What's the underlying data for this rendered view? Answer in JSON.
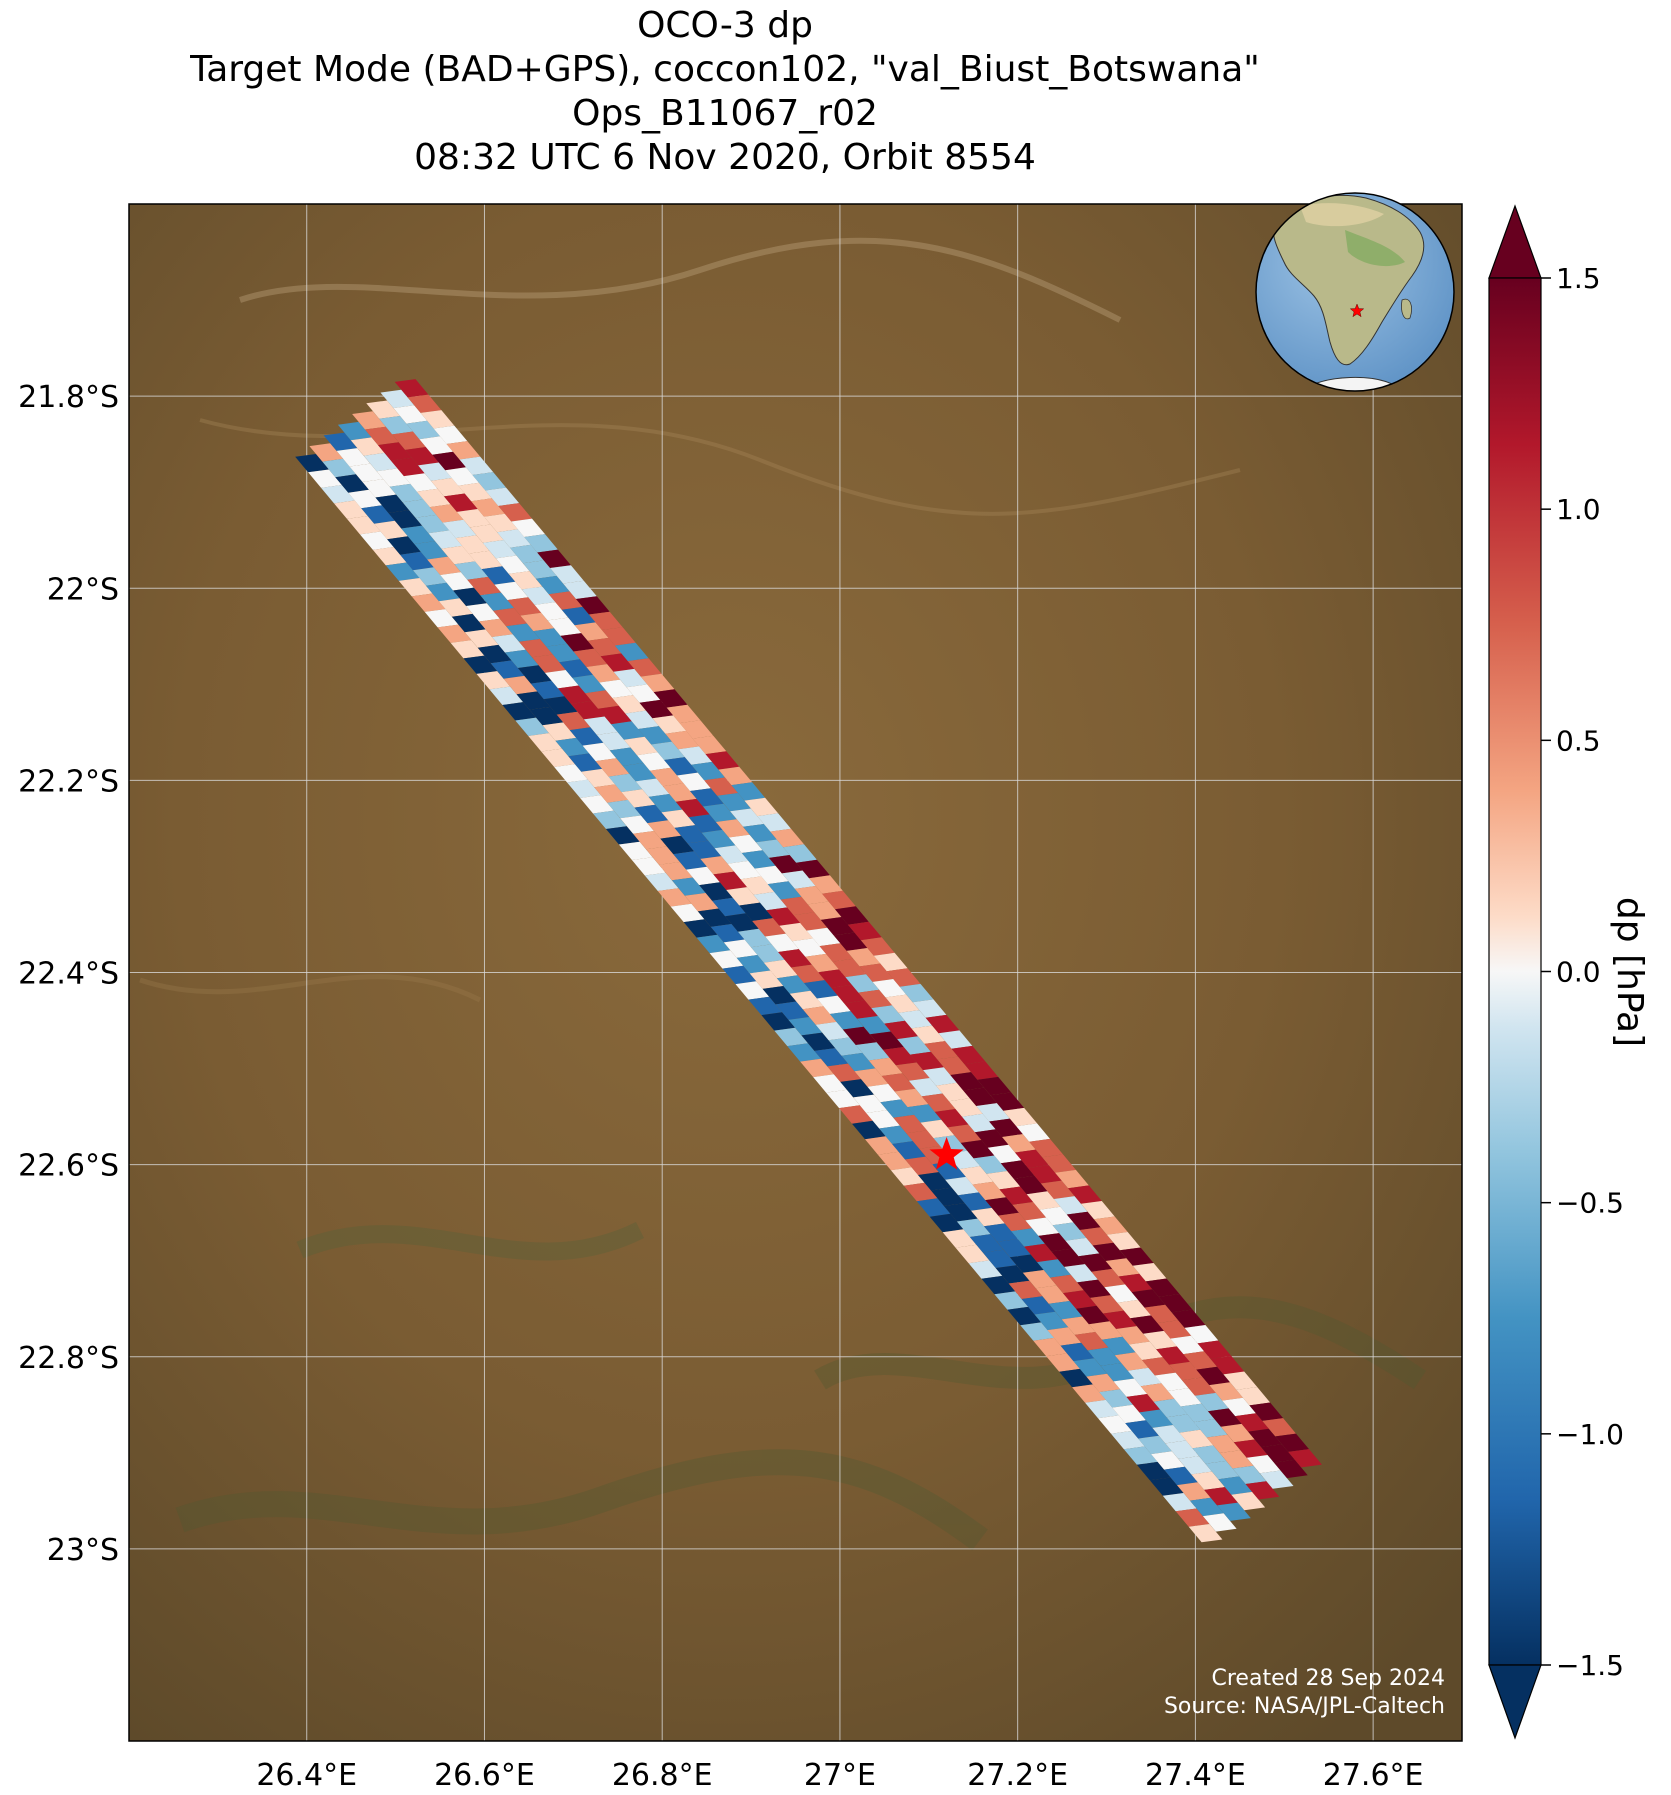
{
  "title_lines": [
    "OCO-3 dp",
    "Target Mode (BAD+GPS), coccon102, \"val_Biust_Botswana\"",
    "Ops_B11067_r02",
    "08:32 UTC 6 Nov 2020, Orbit 8554"
  ],
  "credits": {
    "created": "Created 28 Sep 2024",
    "source": "Source: NASA/JPL-Caltech"
  },
  "map": {
    "lon_range": [
      26.2,
      27.7
    ],
    "lat_range": [
      -23.2,
      -21.6
    ],
    "lon_ticks": [
      {
        "value": 26.4,
        "label": "26.4°E"
      },
      {
        "value": 26.6,
        "label": "26.6°E"
      },
      {
        "value": 26.8,
        "label": "26.8°E"
      },
      {
        "value": 27.0,
        "label": "27°E"
      },
      {
        "value": 27.2,
        "label": "27.2°E"
      },
      {
        "value": 27.4,
        "label": "27.4°E"
      },
      {
        "value": 27.6,
        "label": "27.6°E"
      }
    ],
    "lat_ticks": [
      {
        "value": -21.8,
        "label": "21.8°S"
      },
      {
        "value": -22.0,
        "label": "22°S"
      },
      {
        "value": -22.2,
        "label": "22.2°S"
      },
      {
        "value": -22.4,
        "label": "22.4°S"
      },
      {
        "value": -22.6,
        "label": "22.6°S"
      },
      {
        "value": -22.8,
        "label": "22.8°S"
      },
      {
        "value": -23.0,
        "label": "23°S"
      }
    ],
    "grid": true,
    "target": {
      "lon": 27.12,
      "lat": -22.59,
      "marker": "star",
      "color": "#ff0000"
    },
    "swath": {
      "nw_corner": {
        "lon": 26.43,
        "lat": -21.83
      },
      "se_corner": {
        "lon": 27.45,
        "lat": -22.96
      },
      "approx_width_deg": 0.16
    },
    "inset_globe": {
      "location": "top-right",
      "marker": "star",
      "color": "#ff0000"
    }
  },
  "colorbar": {
    "label": "dp [hPa]",
    "vmin": -1.5,
    "vmax": 1.5,
    "ticks": [
      {
        "value": 1.5,
        "label": "1.5"
      },
      {
        "value": 1.0,
        "label": "1.0"
      },
      {
        "value": 0.5,
        "label": "0.5"
      },
      {
        "value": 0.0,
        "label": "0.0"
      },
      {
        "value": -0.5,
        "label": "−0.5"
      },
      {
        "value": -1.0,
        "label": "−1.0"
      },
      {
        "value": -1.5,
        "label": "−1.5"
      }
    ],
    "colormap": "RdBu_r",
    "extend": "both"
  }
}
